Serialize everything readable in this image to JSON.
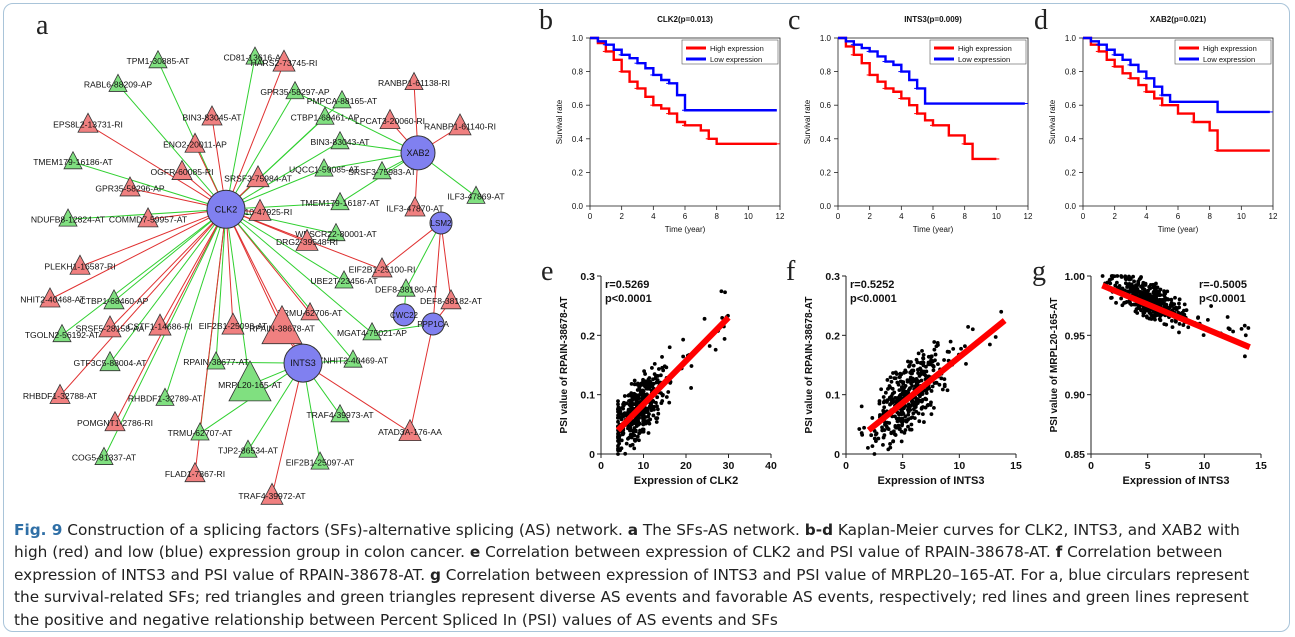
{
  "panels": {
    "a": "a",
    "b": "b",
    "c": "c",
    "d": "d",
    "e": "e",
    "f": "f",
    "g": "g"
  },
  "network": {
    "sf_nodes": [
      {
        "id": "CLK2",
        "label": "CLK2"
      },
      {
        "id": "XAB2",
        "label": "XAB2"
      },
      {
        "id": "LSM2",
        "label": "LSM2"
      },
      {
        "id": "INTS3",
        "label": "INTS3"
      },
      {
        "id": "CWC22",
        "label": "CWC22"
      },
      {
        "id": "PPP1CA",
        "label": "PPP1CA"
      }
    ],
    "as_nodes": [
      {
        "label": "TPM1-30885-AT",
        "type": "favorable"
      },
      {
        "label": "CD81-13616-AP",
        "type": "favorable"
      },
      {
        "label": "HARS2-73745-RI",
        "type": "diverse"
      },
      {
        "label": "RABL6-88209-AP",
        "type": "favorable"
      },
      {
        "label": "GPR35-58297-AP",
        "type": "favorable"
      },
      {
        "label": "PMPCA-88165-AT",
        "type": "favorable"
      },
      {
        "label": "BIN3-83045-AT",
        "type": "diverse"
      },
      {
        "label": "CTBP1-68461-AP",
        "type": "favorable"
      },
      {
        "label": "RANBP1-61138-RI",
        "type": "diverse"
      },
      {
        "label": "EPS8L2-13731-RI",
        "type": "diverse"
      },
      {
        "label": "ENO2-20011-AP",
        "type": "diverse"
      },
      {
        "label": "BIN3-83043-AT",
        "type": "favorable"
      },
      {
        "label": "LPCAT3-20060-RI",
        "type": "diverse"
      },
      {
        "label": "RANBP1-61140-RI",
        "type": "diverse"
      },
      {
        "label": "OGFR-60085-RI",
        "type": "diverse"
      },
      {
        "label": "SRSF3-75984-AT",
        "type": "diverse"
      },
      {
        "label": "SRSF3-75983-AT",
        "type": "favorable"
      },
      {
        "label": "TMEM179-16186-AT",
        "type": "favorable"
      },
      {
        "label": "UQCC1-59085-AT",
        "type": "favorable"
      },
      {
        "label": "GPR35-58296-AP",
        "type": "diverse"
      },
      {
        "label": "STX10-47925-RI",
        "type": "diverse"
      },
      {
        "label": "TMEM179-16187-AT",
        "type": "favorable"
      },
      {
        "label": "ILF3-47869-AT",
        "type": "favorable"
      },
      {
        "label": "COMMD7-59957-AT",
        "type": "diverse"
      },
      {
        "label": "ILF3-47870-AT",
        "type": "diverse"
      },
      {
        "label": "NDUFB8-12824-AT",
        "type": "favorable"
      },
      {
        "label": "WBSCR22-80001-AT",
        "type": "favorable"
      },
      {
        "label": "PLEKH1-16587-RI",
        "type": "diverse"
      },
      {
        "label": "DRG2-39548-RI",
        "type": "diverse"
      },
      {
        "label": "ZNHIT2-40468-AT",
        "type": "diverse"
      },
      {
        "label": "CTBP1-68460-AP",
        "type": "favorable"
      },
      {
        "label": "EIF2B1-25100-RI",
        "type": "diverse"
      },
      {
        "label": "UBE2T-23456-AT",
        "type": "favorable"
      },
      {
        "label": "SRSF5-28158-AA",
        "type": "diverse"
      },
      {
        "label": "CSTF1-14686-RI",
        "type": "diverse"
      },
      {
        "label": "TRMU-62706-AT",
        "type": "diverse"
      },
      {
        "label": "DEF8-38180-AT",
        "type": "favorable"
      },
      {
        "label": "DEF8-38182-AT",
        "type": "diverse"
      },
      {
        "label": "TGOLN2-56192-AT",
        "type": "favorable"
      },
      {
        "label": "EIF2B1-25098-AT",
        "type": "diverse"
      },
      {
        "label": "RPAIN-38678-AT",
        "type": "diverse"
      },
      {
        "label": "MGAT4-75021-AP",
        "type": "favorable"
      },
      {
        "label": "GTF3C5-88004-AT",
        "type": "favorable"
      },
      {
        "label": "RPAIN-38677-AT",
        "type": "favorable"
      },
      {
        "label": "ZNHIT2-40469-AT",
        "type": "favorable"
      },
      {
        "label": "RHBDF1-32788-AT",
        "type": "diverse"
      },
      {
        "label": "RHBDF1-32789-AT",
        "type": "favorable"
      },
      {
        "label": "MRPL20-165-AT",
        "type": "favorable"
      },
      {
        "label": "POMGNT1-2786-RI",
        "type": "diverse"
      },
      {
        "label": "TRAF4-39973-AT",
        "type": "favorable"
      },
      {
        "label": "TRMU-62707-AT",
        "type": "favorable"
      },
      {
        "label": "ATAD3A-176-AA",
        "type": "diverse"
      },
      {
        "label": "COG5-81337-AT",
        "type": "favorable"
      },
      {
        "label": "TJP2-86534-AT",
        "type": "favorable"
      },
      {
        "label": "FLAD1-7867-RI",
        "type": "diverse"
      },
      {
        "label": "EIF2B1-25097-AT",
        "type": "favorable"
      },
      {
        "label": "TRAF4-39972-AT",
        "type": "diverse"
      }
    ]
  },
  "chart_data": [
    {
      "type": "line",
      "panel": "b",
      "title": "CLK2(p=0.013)",
      "xlabel": "Time (year)",
      "ylabel": "Survival rate",
      "xlim": [
        0,
        12
      ],
      "ylim": [
        0,
        1
      ],
      "xticks": [
        "0",
        "2",
        "4",
        "6",
        "8",
        "10",
        "12"
      ],
      "yticks": [
        "0.0",
        "0.2",
        "0.4",
        "0.6",
        "0.8",
        "1.0"
      ],
      "legend": "top-right",
      "series": [
        {
          "name": "High expression",
          "color": "#ff0000",
          "x": [
            0,
            0.5,
            1,
            1.5,
            2,
            2.5,
            3,
            3.5,
            4,
            4.5,
            5,
            5.5,
            6,
            7,
            7.5,
            8,
            11.8
          ],
          "y": [
            1,
            0.97,
            0.92,
            0.87,
            0.8,
            0.74,
            0.7,
            0.65,
            0.6,
            0.58,
            0.55,
            0.5,
            0.48,
            0.45,
            0.4,
            0.37,
            0.37
          ]
        },
        {
          "name": "Low expression",
          "color": "#0000ff",
          "x": [
            0,
            0.5,
            1,
            1.5,
            2,
            2.5,
            3,
            3.5,
            4,
            4.5,
            5,
            5.5,
            6,
            11.8
          ],
          "y": [
            1,
            0.98,
            0.96,
            0.93,
            0.9,
            0.88,
            0.85,
            0.82,
            0.78,
            0.75,
            0.73,
            0.66,
            0.57,
            0.57
          ]
        }
      ]
    },
    {
      "type": "line",
      "panel": "c",
      "title": "INTS3(p=0.009)",
      "xlabel": "Time (year)",
      "ylabel": "Survival rate",
      "xlim": [
        0,
        12
      ],
      "ylim": [
        0,
        1
      ],
      "xticks": [
        "0",
        "2",
        "4",
        "6",
        "8",
        "10",
        "12"
      ],
      "yticks": [
        "0.0",
        "0.2",
        "0.4",
        "0.6",
        "0.8",
        "1.0"
      ],
      "legend": "top-right",
      "series": [
        {
          "name": "High expression",
          "color": "#ff0000",
          "x": [
            0,
            0.5,
            1,
            1.5,
            2,
            2.5,
            3,
            3.5,
            4,
            4.5,
            5,
            5.5,
            6,
            7,
            8,
            8.5,
            10
          ],
          "y": [
            1,
            0.95,
            0.9,
            0.85,
            0.78,
            0.74,
            0.7,
            0.68,
            0.64,
            0.6,
            0.55,
            0.51,
            0.48,
            0.42,
            0.37,
            0.28,
            0.28
          ]
        },
        {
          "name": "Low expression",
          "color": "#0000ff",
          "x": [
            0,
            0.5,
            1,
            1.5,
            2,
            2.5,
            3,
            3.5,
            4,
            4.5,
            5,
            5.5,
            11.8
          ],
          "y": [
            1,
            0.98,
            0.96,
            0.94,
            0.92,
            0.89,
            0.86,
            0.84,
            0.8,
            0.75,
            0.7,
            0.61,
            0.61
          ]
        }
      ]
    },
    {
      "type": "line",
      "panel": "d",
      "title": "XAB2(p=0.021)",
      "xlabel": "Time (year)",
      "ylabel": "Survival rate",
      "xlim": [
        0,
        12
      ],
      "ylim": [
        0,
        1
      ],
      "xticks": [
        "0",
        "2",
        "4",
        "6",
        "8",
        "10",
        "12"
      ],
      "yticks": [
        "0.0",
        "0.2",
        "0.4",
        "0.6",
        "0.8",
        "1.0"
      ],
      "legend": "top-right",
      "series": [
        {
          "name": "High expression",
          "color": "#ff0000",
          "x": [
            0,
            0.5,
            1,
            1.5,
            2,
            2.5,
            3,
            3.5,
            4,
            4.5,
            5,
            6,
            7,
            8,
            8.5,
            11.8
          ],
          "y": [
            1,
            0.96,
            0.92,
            0.87,
            0.83,
            0.79,
            0.76,
            0.72,
            0.68,
            0.64,
            0.6,
            0.55,
            0.5,
            0.45,
            0.33,
            0.33
          ]
        },
        {
          "name": "Low expression",
          "color": "#0000ff",
          "x": [
            0,
            0.5,
            1,
            1.5,
            2,
            2.5,
            3,
            3.5,
            4,
            4.5,
            5,
            5.5,
            8,
            8.5,
            11.8
          ],
          "y": [
            1,
            0.98,
            0.96,
            0.93,
            0.9,
            0.87,
            0.84,
            0.8,
            0.76,
            0.71,
            0.66,
            0.62,
            0.62,
            0.56,
            0.56
          ]
        }
      ]
    },
    {
      "type": "scatter",
      "panel": "e",
      "xlabel": "Expression of CLK2",
      "ylabel": "PSI value of RPAIN-38678-AT",
      "annotation": [
        "r=0.5269",
        "p<0.0001"
      ],
      "xlim": [
        0,
        40
      ],
      "ylim": [
        0,
        0.3
      ],
      "xticks": [
        "0",
        "10",
        "20",
        "30",
        "40"
      ],
      "yticks": [
        "0",
        "0.1",
        "0.2",
        "0.3"
      ],
      "trend": {
        "x": [
          4,
          30
        ],
        "y": [
          0.04,
          0.23
        ],
        "color": "#ff0000"
      },
      "cloud": {
        "count": 420,
        "x_center": 9,
        "x_spread": 4,
        "y_slope": 0.0073,
        "y_intercept": 0.01,
        "y_noise": 0.04,
        "x_min": 4,
        "x_max": 30
      }
    },
    {
      "type": "scatter",
      "panel": "f",
      "xlabel": "Expression of INTS3",
      "ylabel": "PSI value of RPAIN-38678-AT",
      "annotation": [
        "r=0.5252",
        "p<0.0001"
      ],
      "xlim": [
        0,
        15
      ],
      "ylim": [
        0,
        0.3
      ],
      "xticks": [
        "0",
        "5",
        "10",
        "15"
      ],
      "yticks": [
        "0",
        "0.1",
        "0.2",
        "0.3"
      ],
      "trend": {
        "x": [
          2,
          14
        ],
        "y": [
          0.04,
          0.225
        ],
        "color": "#ff0000"
      },
      "cloud": {
        "count": 420,
        "x_center": 5.5,
        "x_spread": 2,
        "y_slope": 0.0155,
        "y_intercept": 0.01,
        "y_noise": 0.045,
        "x_min": 1,
        "x_max": 14
      }
    },
    {
      "type": "scatter",
      "panel": "g",
      "xlabel": "Expression of INTS3",
      "ylabel": "PSI value of MRPL20-165-AT",
      "annotation": [
        "r=-0.5005",
        "p<0.0001"
      ],
      "xlim": [
        0,
        15
      ],
      "ylim": [
        0.85,
        1.0
      ],
      "xticks": [
        "0",
        "5",
        "10",
        "15"
      ],
      "yticks": [
        "0.85",
        "0.90",
        "0.95",
        "1.00"
      ],
      "trend": {
        "x": [
          1,
          14
        ],
        "y": [
          0.992,
          0.94
        ],
        "color": "#ff0000"
      },
      "cloud": {
        "count": 420,
        "x_center": 5,
        "x_spread": 2,
        "y_slope": -0.004,
        "y_intercept": 1.0,
        "y_noise": 0.012,
        "x_min": 1,
        "x_max": 14
      }
    }
  ],
  "caption": {
    "fig_label": "Fig. 9",
    "title": " Construction of a splicing factors (SFs)-alternative splicing (AS) network. ",
    "a_label": "a",
    "a_text": " The SFs-AS network. ",
    "bd_label": "b-d",
    "bd_text": " Kaplan-Meier curves for CLK2, INTS3, and XAB2 with high (red) and low (blue) expression group in colon cancer. ",
    "e_label": "e",
    "e_text": " Correlation between expression of CLK2 and PSI value of RPAIN-38678-AT. ",
    "f_label": "f",
    "f_text": " Correlation between expression of INTS3 and PSI value of RPAIN-38678-AT. ",
    "g_label": "g",
    "g_text": " Correlation between expression of INTS3 and PSI value of MRPL20–165-AT. For a, blue circulars represent the survival-related SFs; red triangles and green triangles represent diverse AS events and favorable AS events, respectively; red lines and green lines represent the positive and negative relationship between Percent Spliced In (PSI) values of AS events and SFs"
  },
  "colors": {
    "sf_fill": "#8080f0",
    "diverse_fill": "#f08080",
    "favorable_fill": "#80e080",
    "positive_edge": "#e03030",
    "negative_edge": "#30d030",
    "high": "#ff0000",
    "low": "#0000ff",
    "caption_label": "#2f6fa6",
    "frame": "#a9c4d9"
  }
}
